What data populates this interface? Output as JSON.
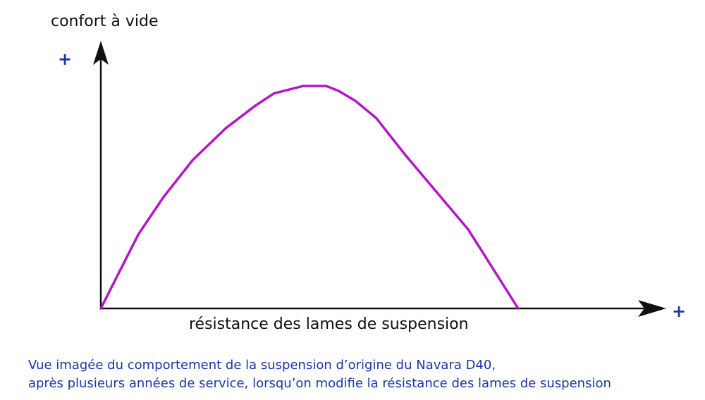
{
  "chart_data": {
    "type": "line",
    "title": "",
    "ylabel": "confort à vide",
    "xlabel": "résistance des lames de suspension",
    "x_axis_end_label": "+",
    "y_axis_end_label": "+",
    "xlim": [
      0,
      100
    ],
    "ylim": [
      0,
      100
    ],
    "grid": false,
    "series": [
      {
        "x": [
          0,
          9,
          15,
          22,
          30,
          37,
          41.5,
          48.5,
          54,
          57,
          61,
          66,
          73,
          81,
          88,
          100
        ],
        "y": [
          0,
          30,
          45,
          60,
          73,
          82,
          87,
          90,
          90,
          88,
          84,
          77,
          62,
          46,
          32,
          0
        ]
      }
    ],
    "line_color": "#b516c8"
  },
  "caption": {
    "line1": "Vue imagée du comportement de la suspension d’origine du Navara D40,",
    "line2": "après plusieurs années de service, lorsqu’on modifie la résistance des lames de suspension",
    "color": "#1a35a8"
  }
}
